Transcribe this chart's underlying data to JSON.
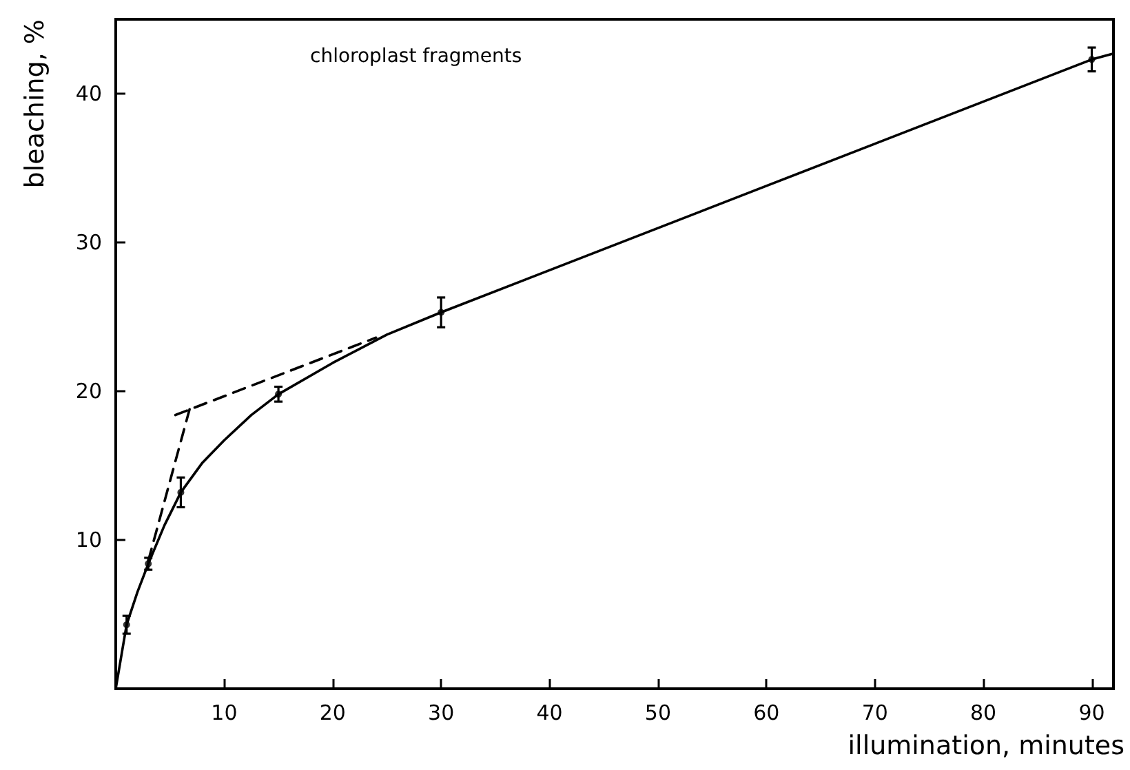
{
  "chart_data": {
    "type": "scatter",
    "xlabel": "illumination, minutes",
    "ylabel": "bleaching, %",
    "annotations": [
      "chloroplast fragments"
    ],
    "xlim": [
      0,
      92
    ],
    "xticks": [
      10,
      20,
      30,
      40,
      50,
      60,
      70,
      80,
      90
    ],
    "ylim": [
      0,
      45
    ],
    "yticks": [
      10,
      20,
      30,
      40
    ],
    "grid": false,
    "series": [
      {
        "color": "#000000",
        "marker": "circle",
        "x": [
          1,
          3,
          6,
          15,
          30,
          90
        ],
        "values": [
          4.3,
          8.4,
          13.2,
          19.8,
          25.3,
          42.3
        ],
        "errors": [
          0.6,
          0.4,
          1.0,
          0.5,
          1.0,
          0.8
        ]
      },
      {
        "type": "line",
        "color": "#000000",
        "line_style": "solid",
        "x": [
          0,
          1,
          2,
          3,
          4.5,
          6,
          8,
          10,
          12.5,
          15,
          20,
          25,
          30,
          60,
          90,
          92
        ],
        "values": [
          0,
          4.3,
          6.5,
          8.4,
          11,
          13.2,
          15.2,
          16.7,
          18.4,
          19.8,
          21.9,
          23.8,
          25.3,
          33.8,
          42.3,
          42.7
        ]
      },
      {
        "type": "line",
        "color": "#000000",
        "line_style": "dashed",
        "x": [
          3,
          7
        ],
        "values": [
          8.6,
          19.3
        ]
      },
      {
        "type": "line",
        "color": "#000000",
        "line_style": "dashed",
        "x": [
          5.5,
          24
        ],
        "values": [
          18.4,
          23.6
        ]
      }
    ]
  }
}
